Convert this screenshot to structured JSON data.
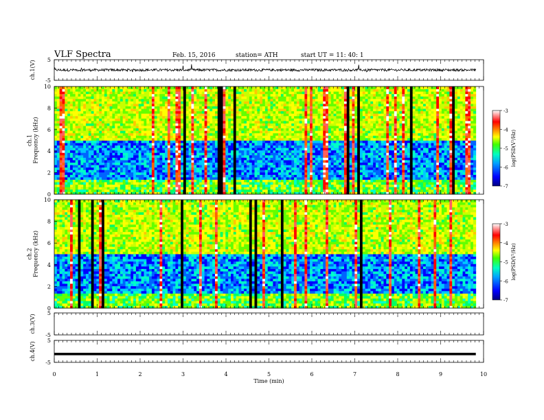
{
  "header": {
    "title": "VLF Spectra",
    "date": "Feb. 15, 2016",
    "station": "station= ATH",
    "start": "start  UT  =   11: 40: 1"
  },
  "chart_data": {
    "type": "heatmap",
    "xlabel": "Time  (min)",
    "xlim": [
      0,
      10
    ],
    "x_ticks": [
      "0",
      "1",
      "2",
      "3",
      "4",
      "5",
      "6",
      "7",
      "8",
      "9",
      "10"
    ],
    "data_end_min": 9.82,
    "panels": [
      {
        "id": "ch1-waveform",
        "type": "line",
        "ylabel": "ch.1(V)",
        "ylim": [
          -5,
          5
        ],
        "y_ticks": [
          "5",
          "-5"
        ],
        "baseline": 0.0,
        "noise_amplitude": 1.2
      },
      {
        "id": "ch1-spectrogram",
        "type": "heatmap",
        "ylabel": "ch.1\nFrequency  (kHz)",
        "ylim": [
          0,
          10
        ],
        "y_ticks": [
          "0",
          "2",
          "4",
          "6",
          "8",
          "10"
        ],
        "colorbar": {
          "label": "log(PSD(V²/Hz)",
          "range": [
            -7,
            -3
          ],
          "ticks": [
            "-3",
            "-4",
            "-5",
            "-6",
            "-7"
          ]
        }
      },
      {
        "id": "ch2-spectrogram",
        "type": "heatmap",
        "ylabel": "ch.2\nFrequency  (kHz)",
        "ylim": [
          0,
          10
        ],
        "y_ticks": [
          "0",
          "2",
          "4",
          "6",
          "8",
          "10"
        ],
        "colorbar": {
          "label": "log(PSD(V²/Hz)",
          "range": [
            -7,
            -3
          ],
          "ticks": [
            "-3",
            "-4",
            "-5",
            "-6",
            "-7"
          ]
        }
      },
      {
        "id": "ch3-waveform",
        "type": "line",
        "ylabel": "ch.3(V)",
        "ylim": [
          -5,
          5
        ],
        "y_ticks": [
          "5",
          "-5"
        ],
        "baseline": null
      },
      {
        "id": "ch4-waveform",
        "type": "line",
        "ylabel": "ch.4(V)",
        "ylim": [
          -5,
          5
        ],
        "y_ticks": [
          "5",
          "-5"
        ],
        "baseline": -1.2
      }
    ],
    "colormap": [
      "#000000",
      "#00008b",
      "#0000ff",
      "#0064ff",
      "#00c8ff",
      "#00ffc8",
      "#00ff64",
      "#64ff00",
      "#c8ff00",
      "#ffff00",
      "#ffc800",
      "#ff6400",
      "#ff0000",
      "#ff6060",
      "#ffffff"
    ]
  }
}
